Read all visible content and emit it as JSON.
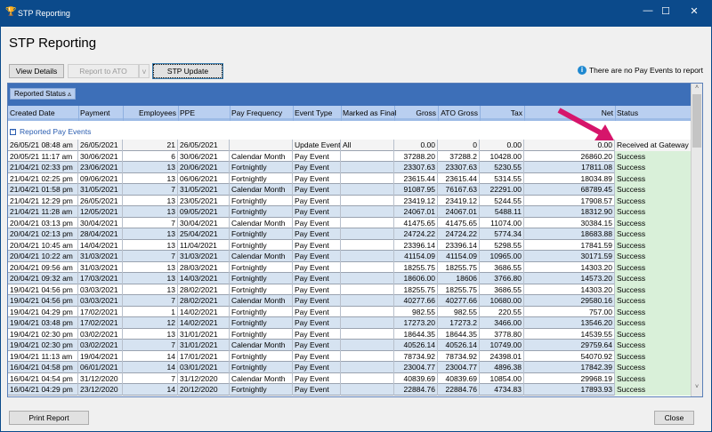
{
  "window": {
    "title": "STP Reporting",
    "minimize": "—",
    "maximize": "☐",
    "close": "✕"
  },
  "page": {
    "heading": "STP Reporting"
  },
  "toolbar": {
    "view_details": "View Details",
    "report_to_ato": "Report to ATO",
    "report_dropdown": "v",
    "stp_update": "STP Update",
    "info_text": "There are no Pay Events to report"
  },
  "grid": {
    "group_chip": "Reported Status ▵",
    "columns": [
      "Created Date",
      "Payment",
      "Employees",
      "PPE",
      "Pay Frequency",
      "Event Type",
      "Marked as Final",
      "Gross",
      "ATO Gross",
      "Tax",
      "Net",
      "Status"
    ],
    "group_label": "Reported Pay Events",
    "group_toggle": "−",
    "rows": [
      [
        "26/05/21 08:48 am",
        "26/05/2021",
        "21",
        "26/05/2021",
        "",
        "Update Event",
        "All",
        "0.00",
        "0",
        "0.00",
        "0.00",
        "Received at Gateway - a"
      ],
      [
        "20/05/21 11:17 am",
        "30/06/2021",
        "6",
        "30/06/2021",
        "Calendar Month",
        "Pay Event",
        "",
        "37288.20",
        "37288.2",
        "10428.00",
        "26860.20",
        "Success"
      ],
      [
        "21/04/21 02:33 pm",
        "23/06/2021",
        "13",
        "20/06/2021",
        "Fortnightly",
        "Pay Event",
        "",
        "23307.63",
        "23307.63",
        "5230.55",
        "17811.08",
        "Success"
      ],
      [
        "21/04/21 02:25 pm",
        "09/06/2021",
        "13",
        "06/06/2021",
        "Fortnightly",
        "Pay Event",
        "",
        "23615.44",
        "23615.44",
        "5314.55",
        "18034.89",
        "Success"
      ],
      [
        "21/04/21 01:58 pm",
        "31/05/2021",
        "7",
        "31/05/2021",
        "Calendar Month",
        "Pay Event",
        "",
        "91087.95",
        "76167.63",
        "22291.00",
        "68789.45",
        "Success"
      ],
      [
        "21/04/21 12:29 pm",
        "26/05/2021",
        "13",
        "23/05/2021",
        "Fortnightly",
        "Pay Event",
        "",
        "23419.12",
        "23419.12",
        "5244.55",
        "17908.57",
        "Success"
      ],
      [
        "21/04/21 11:28 am",
        "12/05/2021",
        "13",
        "09/05/2021",
        "Fortnightly",
        "Pay Event",
        "",
        "24067.01",
        "24067.01",
        "5488.11",
        "18312.90",
        "Success"
      ],
      [
        "20/04/21 03:13 pm",
        "30/04/2021",
        "7",
        "30/04/2021",
        "Calendar Month",
        "Pay Event",
        "",
        "41475.65",
        "41475.65",
        "11074.00",
        "30384.15",
        "Success"
      ],
      [
        "20/04/21 02:13 pm",
        "28/04/2021",
        "13",
        "25/04/2021",
        "Fortnightly",
        "Pay Event",
        "",
        "24724.22",
        "24724.22",
        "5774.34",
        "18683.88",
        "Success"
      ],
      [
        "20/04/21 10:45 am",
        "14/04/2021",
        "13",
        "11/04/2021",
        "Fortnightly",
        "Pay Event",
        "",
        "23396.14",
        "23396.14",
        "5298.55",
        "17841.59",
        "Success"
      ],
      [
        "20/04/21 10:22 am",
        "31/03/2021",
        "7",
        "31/03/2021",
        "Calendar Month",
        "Pay Event",
        "",
        "41154.09",
        "41154.09",
        "10965.00",
        "30171.59",
        "Success"
      ],
      [
        "20/04/21 09:56 am",
        "31/03/2021",
        "13",
        "28/03/2021",
        "Fortnightly",
        "Pay Event",
        "",
        "18255.75",
        "18255.75",
        "3686.55",
        "14303.20",
        "Success"
      ],
      [
        "20/04/21 09:32 am",
        "17/03/2021",
        "13",
        "14/03/2021",
        "Fortnightly",
        "Pay Event",
        "",
        "18606.00",
        "18606",
        "3766.80",
        "14573.20",
        "Success"
      ],
      [
        "19/04/21 04:56 pm",
        "03/03/2021",
        "13",
        "28/02/2021",
        "Fortnightly",
        "Pay Event",
        "",
        "18255.75",
        "18255.75",
        "3686.55",
        "14303.20",
        "Success"
      ],
      [
        "19/04/21 04:56 pm",
        "03/03/2021",
        "7",
        "28/02/2021",
        "Calendar Month",
        "Pay Event",
        "",
        "40277.66",
        "40277.66",
        "10680.00",
        "29580.16",
        "Success"
      ],
      [
        "19/04/21 04:29 pm",
        "17/02/2021",
        "1",
        "14/02/2021",
        "Fortnightly",
        "Pay Event",
        "",
        "982.55",
        "982.55",
        "220.55",
        "757.00",
        "Success"
      ],
      [
        "19/04/21 03:48 pm",
        "17/02/2021",
        "12",
        "14/02/2021",
        "Fortnightly",
        "Pay Event",
        "",
        "17273.20",
        "17273.2",
        "3466.00",
        "13546.20",
        "Success"
      ],
      [
        "19/04/21 02:30 pm",
        "03/02/2021",
        "13",
        "31/01/2021",
        "Fortnightly",
        "Pay Event",
        "",
        "18644.35",
        "18644.35",
        "3778.80",
        "14539.55",
        "Success"
      ],
      [
        "19/04/21 02:30 pm",
        "03/02/2021",
        "7",
        "31/01/2021",
        "Calendar Month",
        "Pay Event",
        "",
        "40526.14",
        "40526.14",
        "10749.00",
        "29759.64",
        "Success"
      ],
      [
        "19/04/21 11:13 am",
        "19/04/2021",
        "14",
        "17/01/2021",
        "Fortnightly",
        "Pay Event",
        "",
        "78734.92",
        "78734.92",
        "24398.01",
        "54070.92",
        "Success"
      ],
      [
        "16/04/21 04:58 pm",
        "06/01/2021",
        "14",
        "03/01/2021",
        "Fortnightly",
        "Pay Event",
        "",
        "23004.77",
        "23004.77",
        "4896.38",
        "17842.39",
        "Success"
      ],
      [
        "16/04/21 04:54 pm",
        "31/12/2020",
        "7",
        "31/12/2020",
        "Calendar Month",
        "Pay Event",
        "",
        "40839.69",
        "40839.69",
        "10854.00",
        "29968.19",
        "Success"
      ],
      [
        "16/04/21 04:29 pm",
        "23/12/2020",
        "14",
        "20/12/2020",
        "Fortnightly",
        "Pay Event",
        "",
        "22884.76",
        "22884.76",
        "4734.83",
        "17893.93",
        "Success"
      ]
    ],
    "scroll_up": "˄",
    "scroll_down": "˅"
  },
  "footer": {
    "print_report": "Print Report",
    "close": "Close"
  },
  "colors": {
    "titlebar": "#0b4a8b",
    "group_panel": "#3d6fb8",
    "row_alt": "#d6e3f1",
    "status_success": "#d9f0d9",
    "annotation_arrow": "#d6156b"
  },
  "icons": {
    "app": "payroll-app-icon",
    "info": "info-icon",
    "annotation": "arrow-annotation"
  }
}
